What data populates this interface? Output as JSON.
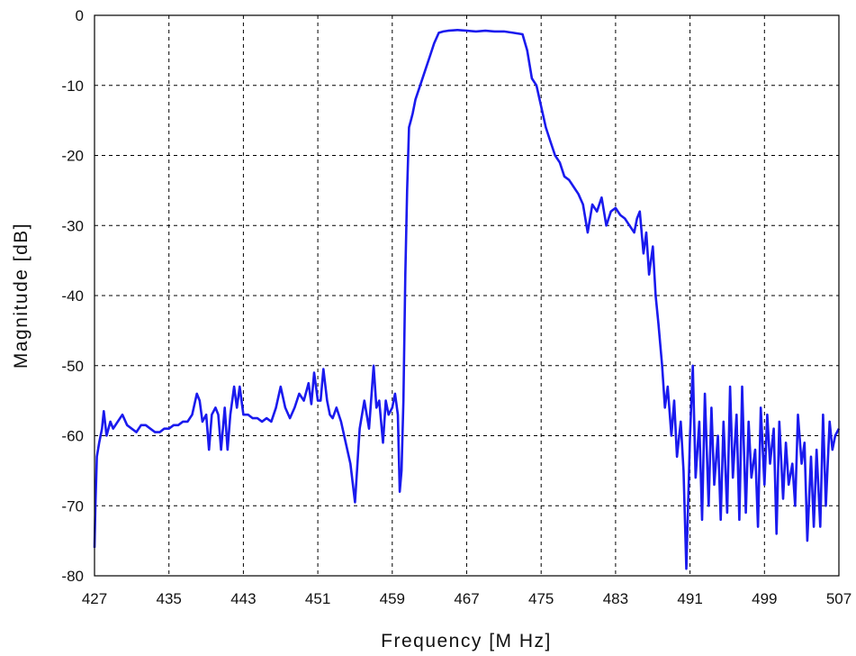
{
  "chart_data": {
    "type": "line",
    "title": "",
    "xlabel": "Frequency [M Hz]",
    "ylabel": "Magnitude [dB]",
    "xlim": [
      427,
      507
    ],
    "ylim": [
      -80,
      0
    ],
    "grid": true,
    "line_color": "#1a1aee",
    "x_ticks": [
      427,
      435,
      443,
      451,
      459,
      467,
      475,
      483,
      491,
      499,
      507
    ],
    "x_tick_labels": [
      "427",
      "435",
      "443",
      "451",
      "459",
      "467",
      "475",
      "483",
      "491",
      "499",
      "507"
    ],
    "y_ticks": [
      0,
      -10,
      -20,
      -30,
      -40,
      -50,
      -60,
      -70,
      -80
    ],
    "y_tick_labels": [
      "0",
      "-10",
      "-20",
      "-30",
      "-40",
      "-50",
      "-60",
      "-70",
      "-80"
    ],
    "series": [
      {
        "x": [
          427.0,
          427.1,
          427.25,
          427.5,
          427.8,
          428.0,
          428.3,
          428.7,
          429.0,
          429.5,
          430.0,
          430.5,
          431.0,
          431.5,
          432.0,
          432.5,
          433.0,
          433.5,
          434.0,
          434.5,
          435.0,
          435.5,
          436.0,
          436.5,
          437.0,
          437.5,
          438.0,
          438.3,
          438.6,
          439.0,
          439.3,
          439.6,
          440.0,
          440.3,
          440.6,
          441.0,
          441.3,
          441.6,
          442.0,
          442.3,
          442.6,
          443.0,
          443.5,
          444.0,
          444.5,
          445.0,
          445.5,
          446.0,
          446.5,
          447.0,
          447.5,
          448.0,
          448.5,
          449.0,
          449.5,
          450.0,
          450.3,
          450.6,
          451.0,
          451.3,
          451.6,
          452.0,
          452.3,
          452.6,
          453.0,
          453.5,
          454.0,
          454.5,
          455.0,
          455.5,
          456.0,
          456.5,
          457.0,
          457.3,
          457.6,
          458.0,
          458.3,
          458.6,
          459.0,
          459.3,
          459.6,
          459.8,
          460.0,
          460.2,
          460.4,
          460.6,
          460.8,
          461.0,
          461.2,
          461.5,
          462.0,
          462.5,
          463.0,
          463.5,
          464.0,
          464.5,
          465.0,
          466.0,
          467.0,
          468.0,
          469.0,
          470.0,
          471.0,
          472.0,
          473.0,
          473.5,
          474.0,
          474.5,
          475.0,
          475.5,
          476.0,
          476.5,
          477.0,
          477.5,
          478.0,
          478.5,
          479.0,
          479.5,
          480.0,
          480.5,
          481.0,
          481.5,
          482.0,
          482.5,
          483.0,
          483.5,
          484.0,
          484.5,
          485.0,
          485.3,
          485.6,
          486.0,
          486.3,
          486.6,
          487.0,
          487.3,
          487.6,
          488.0,
          488.3,
          488.6,
          489.0,
          489.3,
          489.6,
          490.0,
          490.3,
          490.6,
          491.0,
          491.3,
          491.6,
          492.0,
          492.3,
          492.6,
          493.0,
          493.3,
          493.6,
          494.0,
          494.3,
          494.6,
          495.0,
          495.3,
          495.6,
          496.0,
          496.3,
          496.6,
          497.0,
          497.3,
          497.6,
          498.0,
          498.3,
          498.6,
          499.0,
          499.3,
          499.6,
          500.0,
          500.3,
          500.6,
          501.0,
          501.3,
          501.6,
          502.0,
          502.3,
          502.6,
          503.0,
          503.3,
          503.6,
          504.0,
          504.3,
          504.6,
          505.0,
          505.3,
          505.6,
          506.0,
          506.3,
          506.6,
          507.0
        ],
        "y": [
          -76,
          -70,
          -63,
          -61,
          -59,
          -56.5,
          -60,
          -58,
          -59,
          -58,
          -57,
          -58.5,
          -59,
          -59.5,
          -58.5,
          -58.5,
          -59,
          -59.5,
          -59.5,
          -59,
          -59,
          -58.5,
          -58.5,
          -58,
          -58,
          -57,
          -54,
          -55,
          -58,
          -57,
          -62,
          -57,
          -56,
          -57,
          -62,
          -56,
          -62,
          -57,
          -53,
          -56,
          -53,
          -57,
          -57,
          -57.5,
          -57.5,
          -58,
          -57.5,
          -58,
          -56,
          -53,
          -56,
          -57.5,
          -56,
          -54,
          -55,
          -52.5,
          -55.5,
          -51,
          -55,
          -55,
          -50.5,
          -55,
          -57,
          -57.5,
          -56,
          -58,
          -61,
          -64,
          -69.5,
          -59,
          -55,
          -59,
          -50,
          -56,
          -55,
          -61,
          -55,
          -57,
          -56,
          -54,
          -57,
          -68,
          -65,
          -55,
          -37,
          -25,
          -16,
          -15,
          -14,
          -12,
          -10,
          -8,
          -6,
          -4,
          -2.5,
          -2.3,
          -2.2,
          -2.1,
          -2.2,
          -2.3,
          -2.2,
          -2.3,
          -2.3,
          -2.5,
          -2.7,
          -5,
          -9,
          -10,
          -13,
          -16,
          -18,
          -20,
          -21,
          -23,
          -23.5,
          -24.5,
          -25.5,
          -27,
          -31,
          -27,
          -28,
          -26,
          -30,
          -28,
          -27.5,
          -28.5,
          -29,
          -30,
          -31,
          -29,
          -28,
          -34,
          -31,
          -37,
          -33,
          -40,
          -44,
          -50,
          -56,
          -53,
          -60,
          -55,
          -63,
          -58,
          -65,
          -79,
          -60,
          -50,
          -66,
          -58,
          -72,
          -54,
          -70,
          -56,
          -67,
          -60,
          -72,
          -58,
          -71,
          -53,
          -66,
          -57,
          -72,
          -53,
          -71,
          -58,
          -66,
          -62,
          -73,
          -56,
          -67,
          -57,
          -64,
          -59,
          -74,
          -58,
          -69,
          -61,
          -67,
          -64,
          -70,
          -57,
          -64,
          -61,
          -75,
          -63,
          -73,
          -62,
          -73,
          -57,
          -70,
          -58,
          -62,
          -60,
          -59
        ]
      }
    ]
  }
}
